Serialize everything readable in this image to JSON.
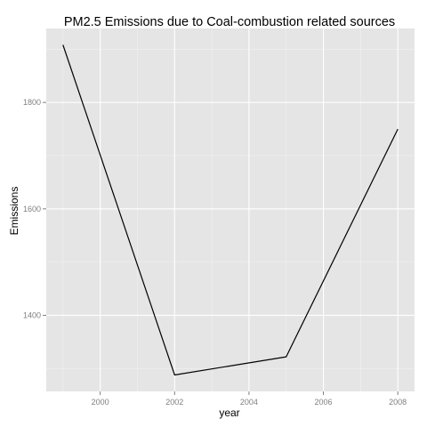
{
  "chart_data": {
    "type": "line",
    "title": "PM2.5 Emissions due to Coal-combustion related sources",
    "xlabel": "year",
    "ylabel": "Emissions",
    "x": [
      1999,
      2002,
      2005,
      2008
    ],
    "series": [
      {
        "values": [
          1908,
          1288,
          1322,
          1750
        ]
      }
    ],
    "xticks": [
      2000,
      2002,
      2004,
      2006,
      2008
    ],
    "xtick_labels": [
      "2000",
      "2002",
      "2004",
      "2006",
      "2008"
    ],
    "yticks": [
      1400,
      1600,
      1800
    ],
    "ytick_labels": [
      "1400",
      "1600",
      "1800"
    ],
    "xlim": [
      1998.55,
      2008.45
    ],
    "ylim": [
      1257,
      1939
    ],
    "grid": true,
    "colors": {
      "panel_background": "#e5e5e5",
      "grid_major": "#ffffff",
      "grid_minor": "#f2f2f2",
      "line": "#000000"
    }
  }
}
